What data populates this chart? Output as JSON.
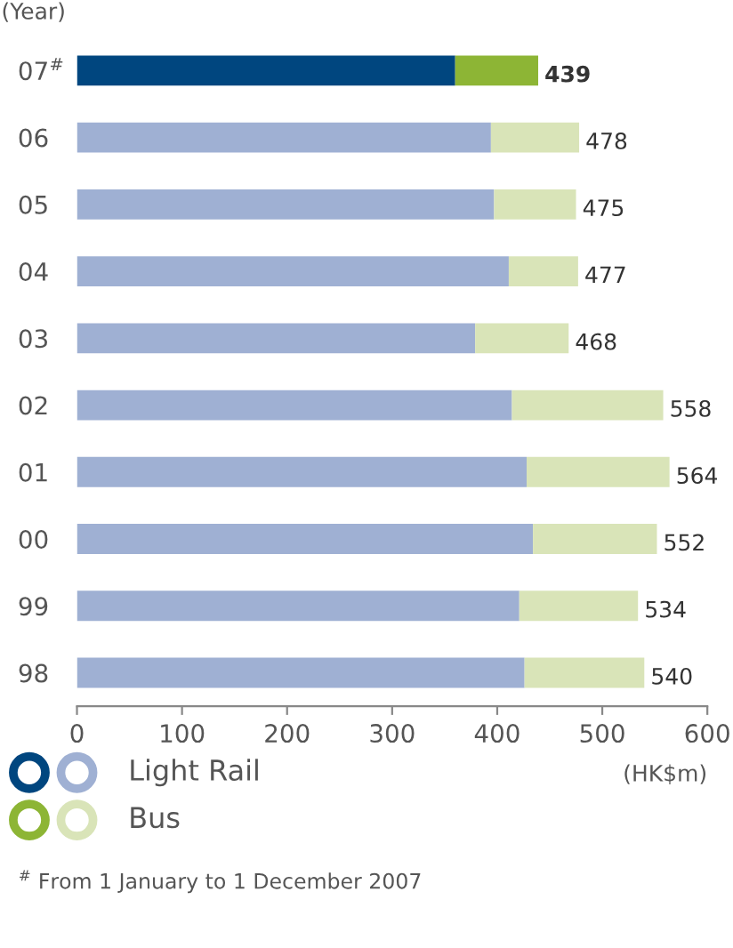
{
  "chart_data": {
    "type": "bar",
    "orientation": "horizontal",
    "stacked": true,
    "categories": [
      "07$^{#}$",
      "06",
      "05",
      "04",
      "03",
      "02",
      "01",
      "00",
      "99",
      "98"
    ],
    "series": [
      {
        "name": "Light Rail",
        "color": "#9fb0d3",
        "colors": [
          "#00467f",
          "#9fb0d3",
          "#9fb0d3",
          "#9fb0d3",
          "#9fb0d3",
          "#9fb0d3",
          "#9fb0d3",
          "#9fb0d3",
          "#9fb0d3",
          "#9fb0d3"
        ],
        "values": [
          360,
          394,
          397,
          411,
          379,
          414,
          428,
          434,
          421,
          426
        ]
      },
      {
        "name": "Bus",
        "color": "#d9e4b8",
        "colors": [
          "#8db535",
          "#d9e4b8",
          "#d9e4b8",
          "#d9e4b8",
          "#d9e4b8",
          "#d9e4b8",
          "#d9e4b8",
          "#d9e4b8",
          "#d9e4b8",
          "#d9e4b8"
        ],
        "values": [
          79,
          84,
          78,
          66,
          89,
          144,
          136,
          118,
          113,
          114
        ]
      }
    ],
    "totals": [
      "439",
      "478",
      "475",
      "477",
      "468",
      "558",
      "564",
      "552",
      "534",
      "540"
    ],
    "xlim": [
      0,
      600
    ],
    "xticks": [
      0,
      100,
      200,
      300,
      400,
      500,
      600
    ],
    "xlabel": "(HK$m)",
    "ylabel": "(Year)",
    "grid": false,
    "legend": "bottom",
    "annotations": [
      "$^{#}$ From 1 January to 1 December 2007"
    ]
  }
}
